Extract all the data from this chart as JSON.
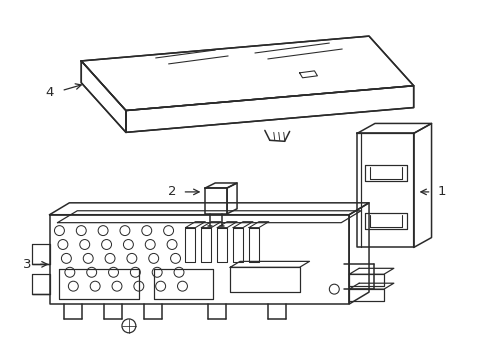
{
  "background_color": "#ffffff",
  "line_color": "#2a2a2a",
  "line_width": 1.1,
  "label_fontsize": 9.5,
  "fig_width": 4.89,
  "fig_height": 3.6,
  "dpi": 100
}
